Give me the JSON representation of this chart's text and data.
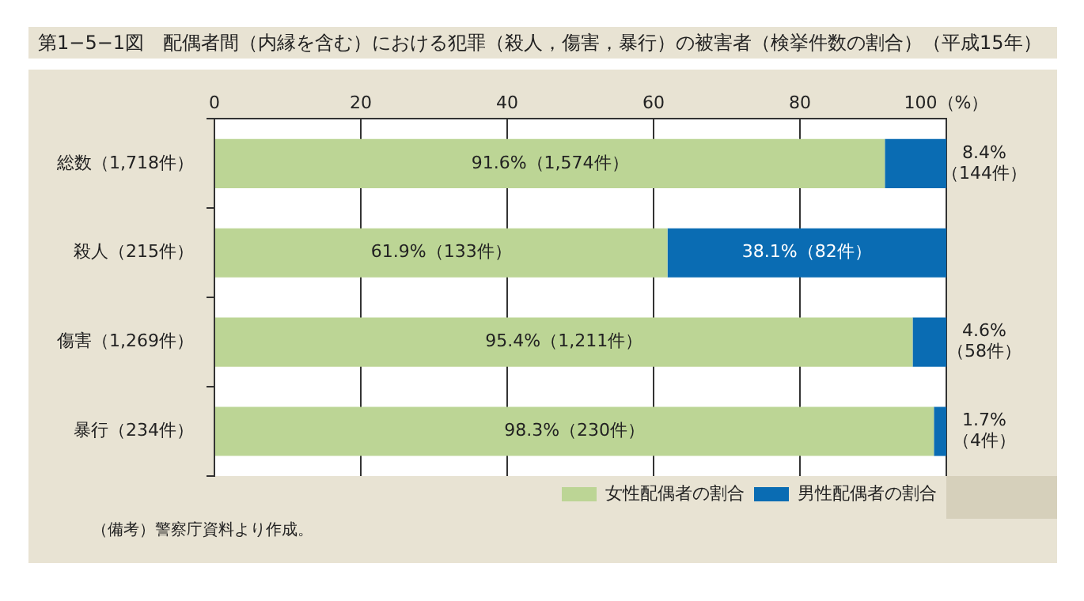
{
  "chart_data": {
    "type": "bar",
    "orientation": "horizontal",
    "stacked": true,
    "title": "第1−5−1図　配偶者間（内縁を含む）における犯罪（殺人，傷害，暴行）の被害者（検挙件数の割合）（平成15年）",
    "categories": [
      "総数（1,718件）",
      "殺人（215件）",
      "傷害（1,269件）",
      "暴行（234件）"
    ],
    "series": [
      {
        "name": "女性配偶者の割合",
        "color": "#bcd595",
        "values": [
          91.6,
          61.9,
          95.4,
          98.3
        ],
        "value_labels": [
          "91.6%（1,574件）",
          "61.9%（133件）",
          "95.4%（1,211件）",
          "98.3%（230件）"
        ]
      },
      {
        "name": "男性配偶者の割合",
        "color": "#0a6cb3",
        "values": [
          8.4,
          38.1,
          4.6,
          1.7
        ],
        "value_labels": [
          "8.4%（144件）",
          "38.1%（82件）",
          "4.6%（58件）",
          "1.7%（4件）"
        ]
      }
    ],
    "xlim": [
      0,
      100
    ],
    "xticks": [
      0,
      20,
      40,
      60,
      {
        "value": 100,
        "label": "100（%）"
      },
      80
    ],
    "grid": "x",
    "legend": "bottom right",
    "annotations": [
      "（備考）警察庁資料より作成。"
    ]
  }
}
